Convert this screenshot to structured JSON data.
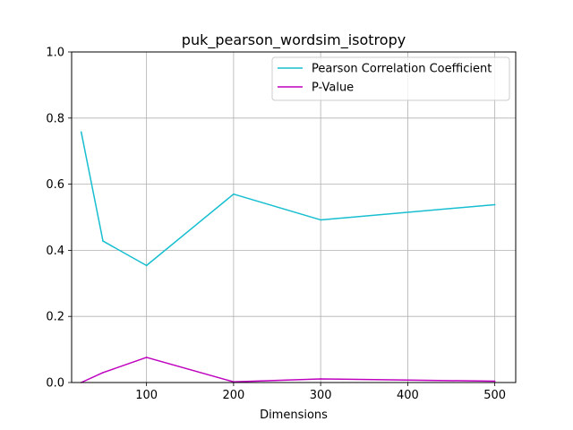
{
  "chart_data": {
    "type": "line",
    "title": "puk_pearson_wordsim_isotropy",
    "xlabel": "Dimensions",
    "ylabel": "",
    "xlim": [
      14,
      524
    ],
    "ylim": [
      0,
      1
    ],
    "xticks": [
      100,
      200,
      300,
      400,
      500
    ],
    "yticks": [
      0.0,
      0.2,
      0.4,
      0.6,
      0.8,
      1.0
    ],
    "xtick_labels": [
      "100",
      "200",
      "300",
      "400",
      "500"
    ],
    "ytick_labels": [
      "0.0",
      "0.2",
      "0.4",
      "0.6",
      "0.8",
      "1.0"
    ],
    "grid": true,
    "legend_position": "top-right",
    "x": [
      25,
      50,
      100,
      200,
      300,
      500
    ],
    "series": [
      {
        "name": "Pearson Correlation Coefficient",
        "color": "#17becf",
        "values": [
          0.758,
          0.428,
          0.354,
          0.57,
          0.492,
          0.538
        ]
      },
      {
        "name": "P-Value",
        "color": "#bf00bf",
        "values": [
          0.0,
          0.03,
          0.076,
          0.002,
          0.011,
          0.004
        ]
      }
    ]
  }
}
